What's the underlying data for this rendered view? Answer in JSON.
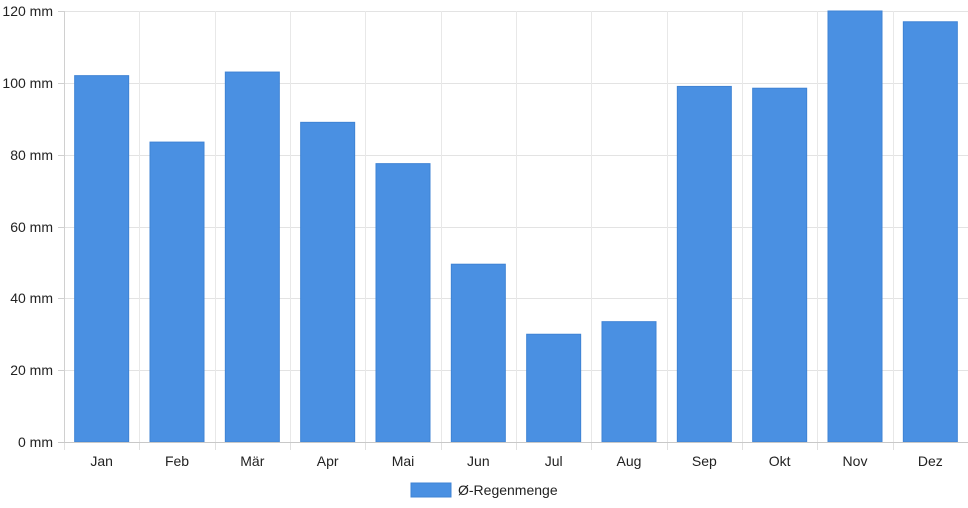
{
  "chart_data": {
    "type": "bar",
    "categories": [
      "Jan",
      "Feb",
      "Mär",
      "Apr",
      "Mai",
      "Jun",
      "Jul",
      "Aug",
      "Sep",
      "Okt",
      "Nov",
      "Dez"
    ],
    "series": [
      {
        "name": "Ø-Regenmenge",
        "values": [
          102,
          83.5,
          103,
          89,
          77.5,
          49.5,
          30,
          33.5,
          99,
          98.5,
          120,
          117
        ],
        "color": "#4a90e2"
      }
    ],
    "ylim": [
      0,
      120
    ],
    "yticks": [
      0,
      20,
      40,
      60,
      80,
      100,
      120
    ],
    "y_unit": "mm",
    "y_tick_labels": [
      "0 mm",
      "20 mm",
      "40 mm",
      "60 mm",
      "80 mm",
      "100 mm",
      "120 mm"
    ],
    "grid": true,
    "legend_position": "bottom-center",
    "title": "",
    "xlabel": "",
    "ylabel": ""
  }
}
